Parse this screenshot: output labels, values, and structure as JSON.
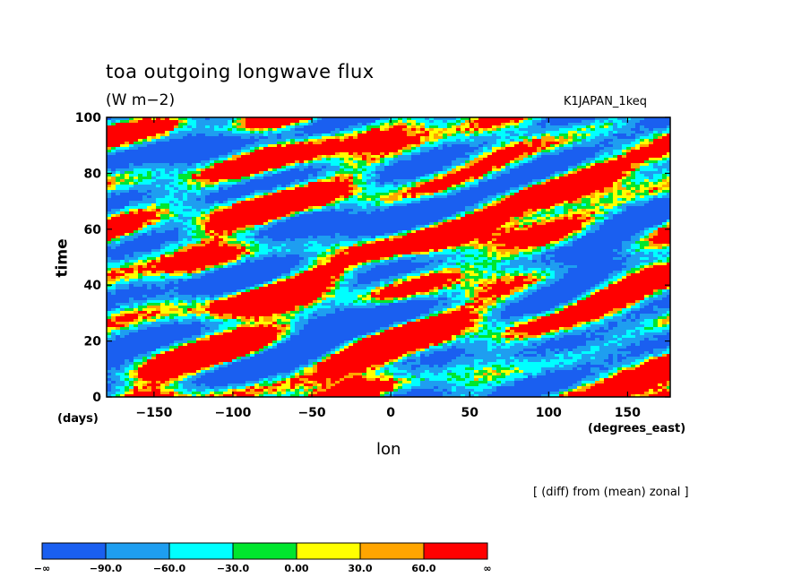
{
  "chart_data": {
    "type": "heatmap",
    "title": "toa outgoing longwave flux",
    "units": "(W m−2)",
    "experiment": "K1JAPAN_1keq",
    "xlabel": "lon",
    "xunit": "(degrees_east)",
    "ylabel": "time",
    "yunit": "(days)",
    "xlim": [
      -180,
      177
    ],
    "ylim": [
      0,
      100
    ],
    "x_ticks": [
      -150,
      -100,
      -50,
      0,
      50,
      100,
      150
    ],
    "x_tick_labels": [
      "−150",
      "−100",
      "−50",
      "0",
      "50",
      "100",
      "150"
    ],
    "y_ticks": [
      0,
      20,
      40,
      60,
      80,
      100
    ],
    "y_tick_labels": [
      "0",
      "20",
      "40",
      "60",
      "80",
      "100"
    ],
    "note": "[ (diff) from (mean) zonal ]",
    "levels": [
      "−∞",
      "−90.0",
      "−60.0",
      "−30.0",
      "0.00",
      "30.0",
      "60.0",
      "∞"
    ],
    "colors": [
      "#1a5ff0",
      "#1e9ef0",
      "#00ffff",
      "#00e62e",
      "#ffff00",
      "#ffa500",
      "#ff0000"
    ]
  }
}
